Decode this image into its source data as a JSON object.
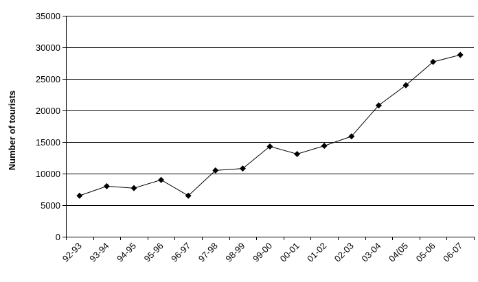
{
  "chart_data": {
    "type": "line",
    "title": "",
    "xlabel": "",
    "ylabel": "Number of tourists",
    "categories": [
      "92-93",
      "93-94",
      "94-95",
      "95-96",
      "96-97",
      "97-98",
      "98-99",
      "99-00",
      "00-01",
      "01-02",
      "02-03",
      "03-04",
      "04(05",
      "05-06",
      "06-07"
    ],
    "series": [
      {
        "values": [
          6500,
          8000,
          7700,
          9000,
          6500,
          10500,
          10800,
          14300,
          13100,
          14400,
          15900,
          20800,
          24000,
          27700,
          28800
        ]
      }
    ],
    "ylim": [
      0,
      35000
    ],
    "yticks": [
      0,
      5000,
      10000,
      15000,
      20000,
      25000,
      30000,
      35000
    ],
    "grid": "horizontal",
    "legend": "none",
    "marker": "diamond",
    "colors": {
      "line": "#000000",
      "marker": "#000000",
      "grid": "#000000"
    }
  }
}
